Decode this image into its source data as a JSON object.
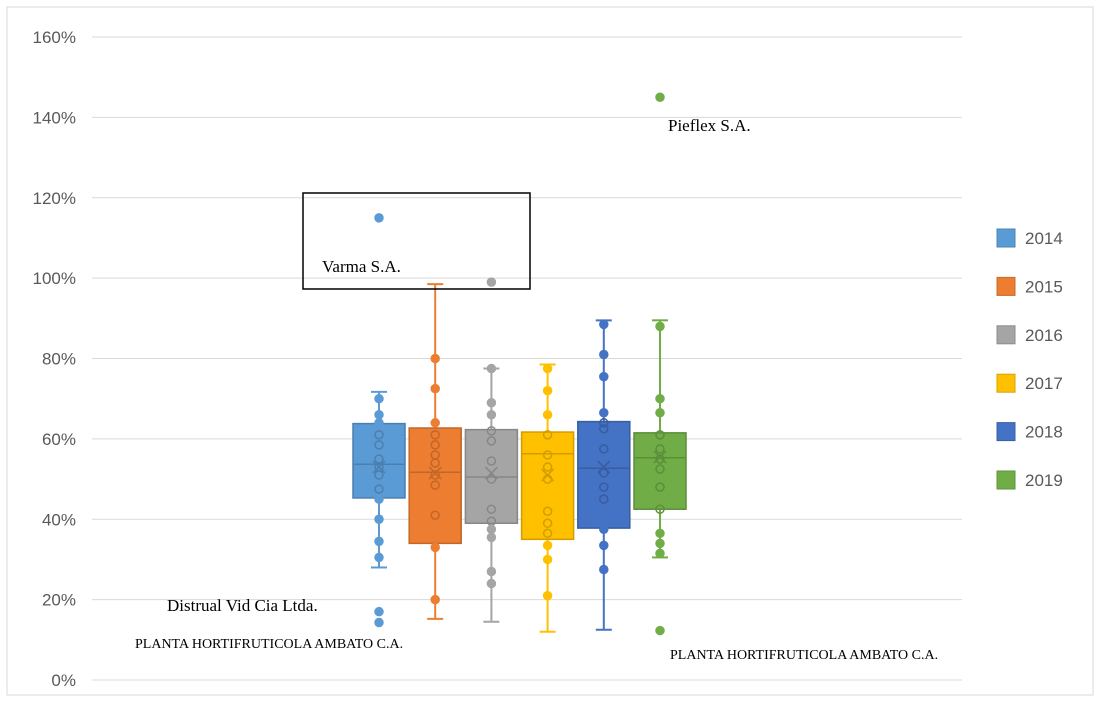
{
  "chart_data": {
    "type": "boxplot",
    "ylim": [
      0,
      1.6
    ],
    "y_ticks": [
      0,
      0.2,
      0.4,
      0.6,
      0.8,
      1.0,
      1.2,
      1.4,
      1.6
    ],
    "y_tick_labels": [
      "0%",
      "20%",
      "40%",
      "60%",
      "80%",
      "100%",
      "120%",
      "140%",
      "160%"
    ],
    "grid": true,
    "legend_position": "right",
    "series": [
      {
        "name": "2014",
        "color": "#5B9BD5",
        "whisker_low": 0.28,
        "q1": 0.453,
        "median": 0.537,
        "q3": 0.638,
        "whisker_high": 0.717,
        "mean": 0.53,
        "points": [
          0.7,
          0.66,
          0.64,
          0.61,
          0.585,
          0.55,
          0.53,
          0.51,
          0.475,
          0.45,
          0.4,
          0.345,
          0.305,
          0.17,
          0.143,
          1.15
        ]
      },
      {
        "name": "2015",
        "color": "#ED7D31",
        "whisker_low": 0.152,
        "q1": 0.34,
        "median": 0.517,
        "q3": 0.627,
        "whisker_high": 0.985,
        "mean": 0.515,
        "points": [
          0.8,
          0.725,
          0.64,
          0.61,
          0.585,
          0.56,
          0.54,
          0.51,
          0.485,
          0.41,
          0.33,
          0.2
        ]
      },
      {
        "name": "2016",
        "color": "#A5A5A5",
        "whisker_low": 0.145,
        "q1": 0.39,
        "median": 0.505,
        "q3": 0.623,
        "whisker_high": 0.775,
        "mean": 0.515,
        "points": [
          0.775,
          0.69,
          0.66,
          0.62,
          0.595,
          0.545,
          0.5,
          0.425,
          0.395,
          0.375,
          0.355,
          0.27,
          0.24,
          0.99
        ]
      },
      {
        "name": "2017",
        "color": "#FFC000",
        "whisker_low": 0.12,
        "q1": 0.35,
        "median": 0.563,
        "q3": 0.617,
        "whisker_high": 0.785,
        "mean": 0.51,
        "points": [
          0.775,
          0.72,
          0.66,
          0.61,
          0.56,
          0.53,
          0.5,
          0.42,
          0.39,
          0.365,
          0.335,
          0.3,
          0.21
        ]
      },
      {
        "name": "2018",
        "color": "#4472C4",
        "whisker_low": 0.125,
        "q1": 0.378,
        "median": 0.527,
        "q3": 0.643,
        "whisker_high": 0.895,
        "mean": 0.53,
        "points": [
          0.885,
          0.81,
          0.755,
          0.665,
          0.64,
          0.625,
          0.575,
          0.515,
          0.48,
          0.45,
          0.375,
          0.335,
          0.275
        ]
      },
      {
        "name": "2019",
        "color": "#70AD47",
        "whisker_low": 0.305,
        "q1": 0.425,
        "median": 0.553,
        "q3": 0.615,
        "whisker_high": 0.895,
        "mean": 0.555,
        "points": [
          0.88,
          0.7,
          0.665,
          0.61,
          0.575,
          0.55,
          0.525,
          0.48,
          0.425,
          0.365,
          0.34,
          0.315,
          1.45,
          0.123
        ]
      }
    ],
    "annotations": [
      "Varma S.A.",
      "Pieflex S.A.",
      "Distrual Vid Cia Ltda.",
      "PLANTA HORTIFRUTICOLA AMBATO C.A.",
      "PLANTA HORTIFRUTICOLA AMBATO C.A."
    ]
  }
}
